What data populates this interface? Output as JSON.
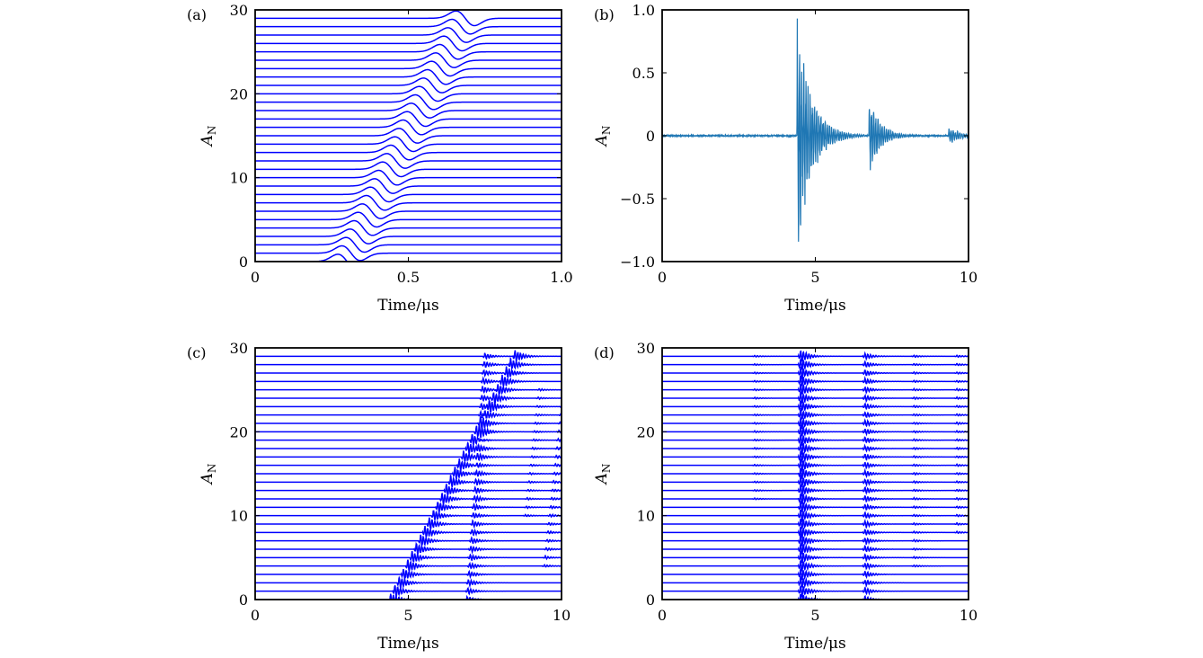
{
  "chart_data": [
    {
      "type": "line",
      "panel_label": "(a)",
      "xlabel": "Time/μs",
      "ylabel": "A_N",
      "ylabel_main": "A",
      "ylabel_sub": "N",
      "xlim": [
        0,
        1.0
      ],
      "ylim": [
        0,
        30
      ],
      "xticks": [
        0,
        0.5,
        1.0
      ],
      "xtick_labels": [
        "0",
        "0.5",
        "1.0"
      ],
      "yticks": [
        0,
        10,
        20,
        30
      ],
      "ytick_labels": [
        "0",
        "10",
        "20",
        "30"
      ],
      "color": "#0000ff",
      "series_count": 30,
      "series_description": "offset traces n = 0..29, each a single pulse whose arrival moves linearly later with trace index",
      "arrivals": [
        {
          "t0": 0.3,
          "n_start": 0,
          "n_end": 29,
          "slope": 0.0133,
          "amplitude": 0.9,
          "width": 0.03,
          "note": "direct wave"
        }
      ],
      "grid": false
    },
    {
      "type": "line",
      "panel_label": "(b)",
      "xlabel": "Time/μs",
      "ylabel": "A_N",
      "ylabel_main": "A",
      "ylabel_sub": "N",
      "xlim": [
        0,
        10
      ],
      "ylim": [
        -1.0,
        1.0
      ],
      "xticks": [
        0,
        5,
        10
      ],
      "xtick_labels": [
        "0",
        "5",
        "10"
      ],
      "yticks": [
        -1.0,
        -0.5,
        0,
        0.5,
        1.0
      ],
      "ytick_labels": [
        "−1.0",
        "−0.5",
        "0",
        "0.5",
        "1.0"
      ],
      "color": "#1f77b4",
      "bursts": [
        {
          "t": 4.4,
          "peak": 1.0,
          "decay": 0.45
        },
        {
          "t": 6.75,
          "peak": 0.33,
          "decay": 0.35
        },
        {
          "t": 9.35,
          "peak": 0.07,
          "decay": 0.4
        }
      ],
      "grid": false
    },
    {
      "type": "line",
      "panel_label": "(c)",
      "xlabel": "Time/μs",
      "ylabel": "A_N",
      "ylabel_main": "A",
      "ylabel_sub": "N",
      "xlim": [
        0,
        10
      ],
      "ylim": [
        0,
        30
      ],
      "xticks": [
        0,
        5,
        10
      ],
      "xtick_labels": [
        "0",
        "5",
        "10"
      ],
      "yticks": [
        0,
        10,
        20,
        30
      ],
      "ytick_labels": [
        "0",
        "10",
        "20",
        "30"
      ],
      "color": "#0000ff",
      "series_count": 30,
      "arrivals": [
        {
          "t0": 4.4,
          "slope": 0.14,
          "amplitude": 0.9,
          "n_start": 0,
          "n_end": 29
        },
        {
          "t0": 6.9,
          "slope": 0.02,
          "amplitude": 0.45,
          "n_start": 0,
          "n_end": 29
        },
        {
          "t0": 9.3,
          "slope": 0.03,
          "amplitude": 0.2,
          "n_start": 4,
          "n_end": 29
        },
        {
          "t0": 8.5,
          "slope": 0.03,
          "amplitude": 0.15,
          "n_start": 10,
          "n_end": 25
        }
      ],
      "grid": false
    },
    {
      "type": "line",
      "panel_label": "(d)",
      "xlabel": "Time/μs",
      "ylabel": "A_N",
      "ylabel_main": "A",
      "ylabel_sub": "N",
      "xlim": [
        0,
        10
      ],
      "ylim": [
        0,
        30
      ],
      "xticks": [
        0,
        5,
        10
      ],
      "xtick_labels": [
        "0",
        "5",
        "10"
      ],
      "yticks": [
        0,
        10,
        20,
        30
      ],
      "ytick_labels": [
        "0",
        "10",
        "20",
        "30"
      ],
      "color": "#0000ff",
      "series_count": 30,
      "arrivals": [
        {
          "t0": 4.5,
          "slope": 0.0,
          "amplitude": 0.9,
          "n_start": 0,
          "n_end": 29
        },
        {
          "t0": 6.6,
          "slope": 0.0,
          "amplitude": 0.45,
          "n_start": 0,
          "n_end": 29
        },
        {
          "t0": 3.0,
          "slope": 0.0,
          "amplitude": 0.12,
          "n_start": 12,
          "n_end": 29
        },
        {
          "t0": 8.2,
          "slope": 0.0,
          "amplitude": 0.15,
          "n_start": 4,
          "n_end": 29
        },
        {
          "t0": 9.6,
          "slope": 0.0,
          "amplitude": 0.15,
          "n_start": 8,
          "n_end": 29
        }
      ],
      "grid": false
    }
  ]
}
